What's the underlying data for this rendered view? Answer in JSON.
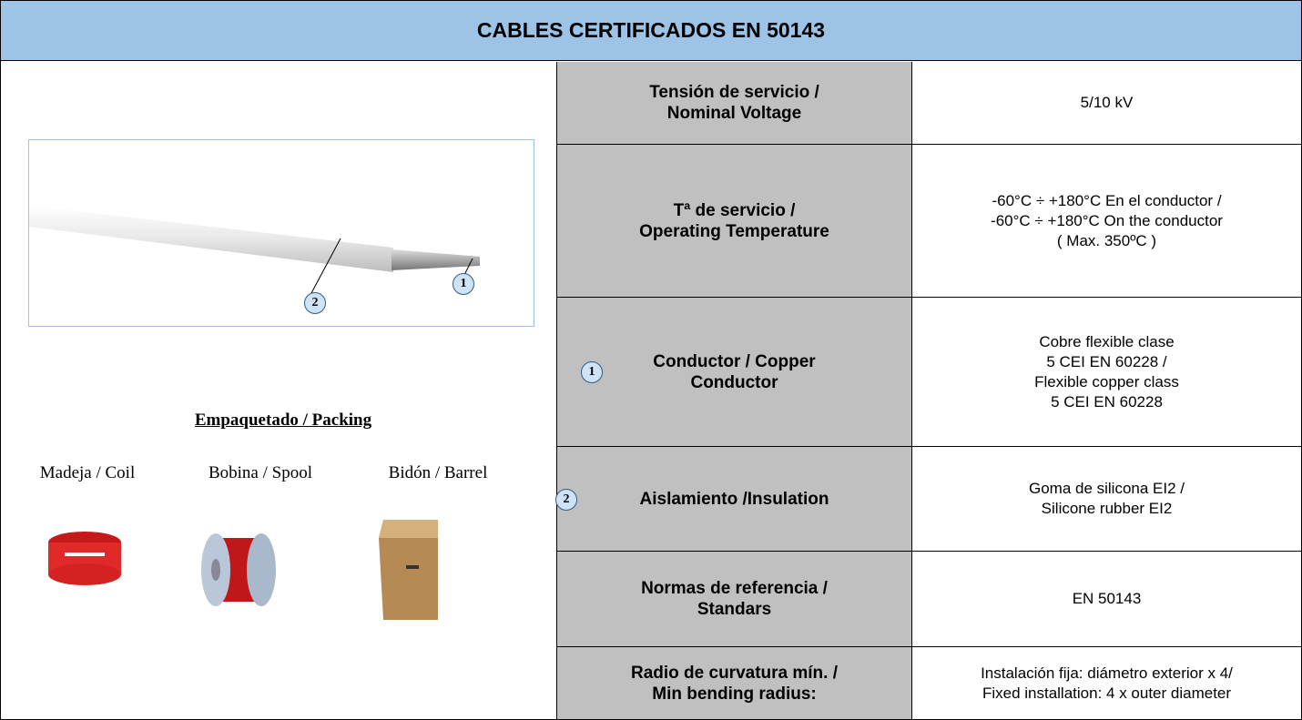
{
  "header": {
    "title": "CABLES CERTIFICADOS EN 50143"
  },
  "image": {
    "callouts": [
      "1",
      "2"
    ]
  },
  "packing": {
    "title": "Empaquetado / Packing",
    "items": [
      "Madeja / Coil",
      "Bobina / Spool",
      "Bidón / Barrel"
    ]
  },
  "table": {
    "rows": [
      {
        "label": [
          "Tensión de servicio /",
          "Nominal Voltage"
        ],
        "value": [
          "5/10 kV"
        ]
      },
      {
        "label": [
          "Tª de servicio /",
          "Operating Temperature"
        ],
        "value": [
          "-60°C ÷ +180°C En el conductor /",
          "-60°C ÷ +180°C On the conductor",
          "( Max. 350ºC )"
        ]
      },
      {
        "marker": "1",
        "label": [
          "Conductor  / Copper",
          "Conductor"
        ],
        "value": [
          "Cobre flexible clase",
          "5 CEI EN 60228 /",
          "Flexible copper class",
          "5 CEI EN 60228"
        ]
      },
      {
        "marker": "2",
        "label": [
          "Aislamiento /Insulation"
        ],
        "value": [
          "Goma de silicona EI2 /",
          "Silicone rubber EI2"
        ]
      },
      {
        "label": [
          "Normas de referencia /",
          "Standars"
        ],
        "value": [
          "EN 50143"
        ]
      },
      {
        "label": [
          "Radio de curvatura mín. /",
          "Min bending radius:"
        ],
        "value": [
          "Instalación fija: diámetro exterior x 4/",
          "Fixed installation: 4 x outer diameter"
        ]
      }
    ]
  }
}
